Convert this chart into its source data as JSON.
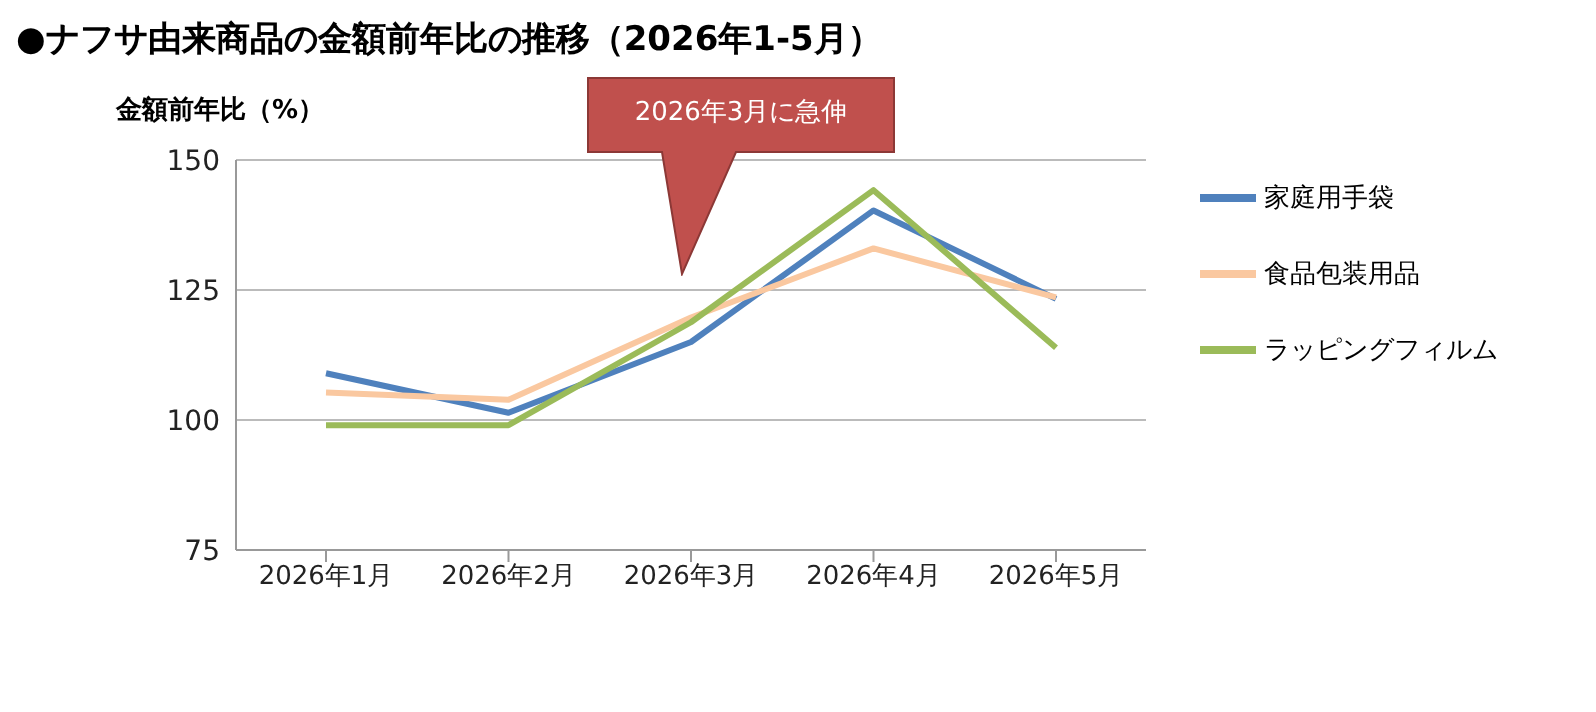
{
  "chart_data": {
    "type": "line",
    "title": "●ナフサ由来商品の金額前年比の推移（2026年1-5月）",
    "ylabel": "金額前年比（%）",
    "categories": [
      "2026年1月",
      "2026年2月",
      "2026年3月",
      "2026年4月",
      "2026年5月"
    ],
    "series": [
      {
        "name": "家庭用手袋",
        "color": "#4f81bd",
        "values": [
          109,
          101.4,
          115,
          140.3,
          123.3
        ]
      },
      {
        "name": "食品包装用品",
        "color": "#fac8a0",
        "values": [
          105.3,
          103.9,
          119.7,
          133,
          123.6
        ]
      },
      {
        "name": "ラッピングフィルム",
        "color": "#9bbb59",
        "values": [
          99,
          99,
          118.8,
          144.2,
          113.9
        ]
      }
    ],
    "ylim": [
      75,
      150
    ],
    "yticks": [
      75,
      100,
      125,
      150
    ],
    "grid": "y",
    "legend": "right",
    "annotations": [
      "2026年3月に急伸"
    ]
  }
}
